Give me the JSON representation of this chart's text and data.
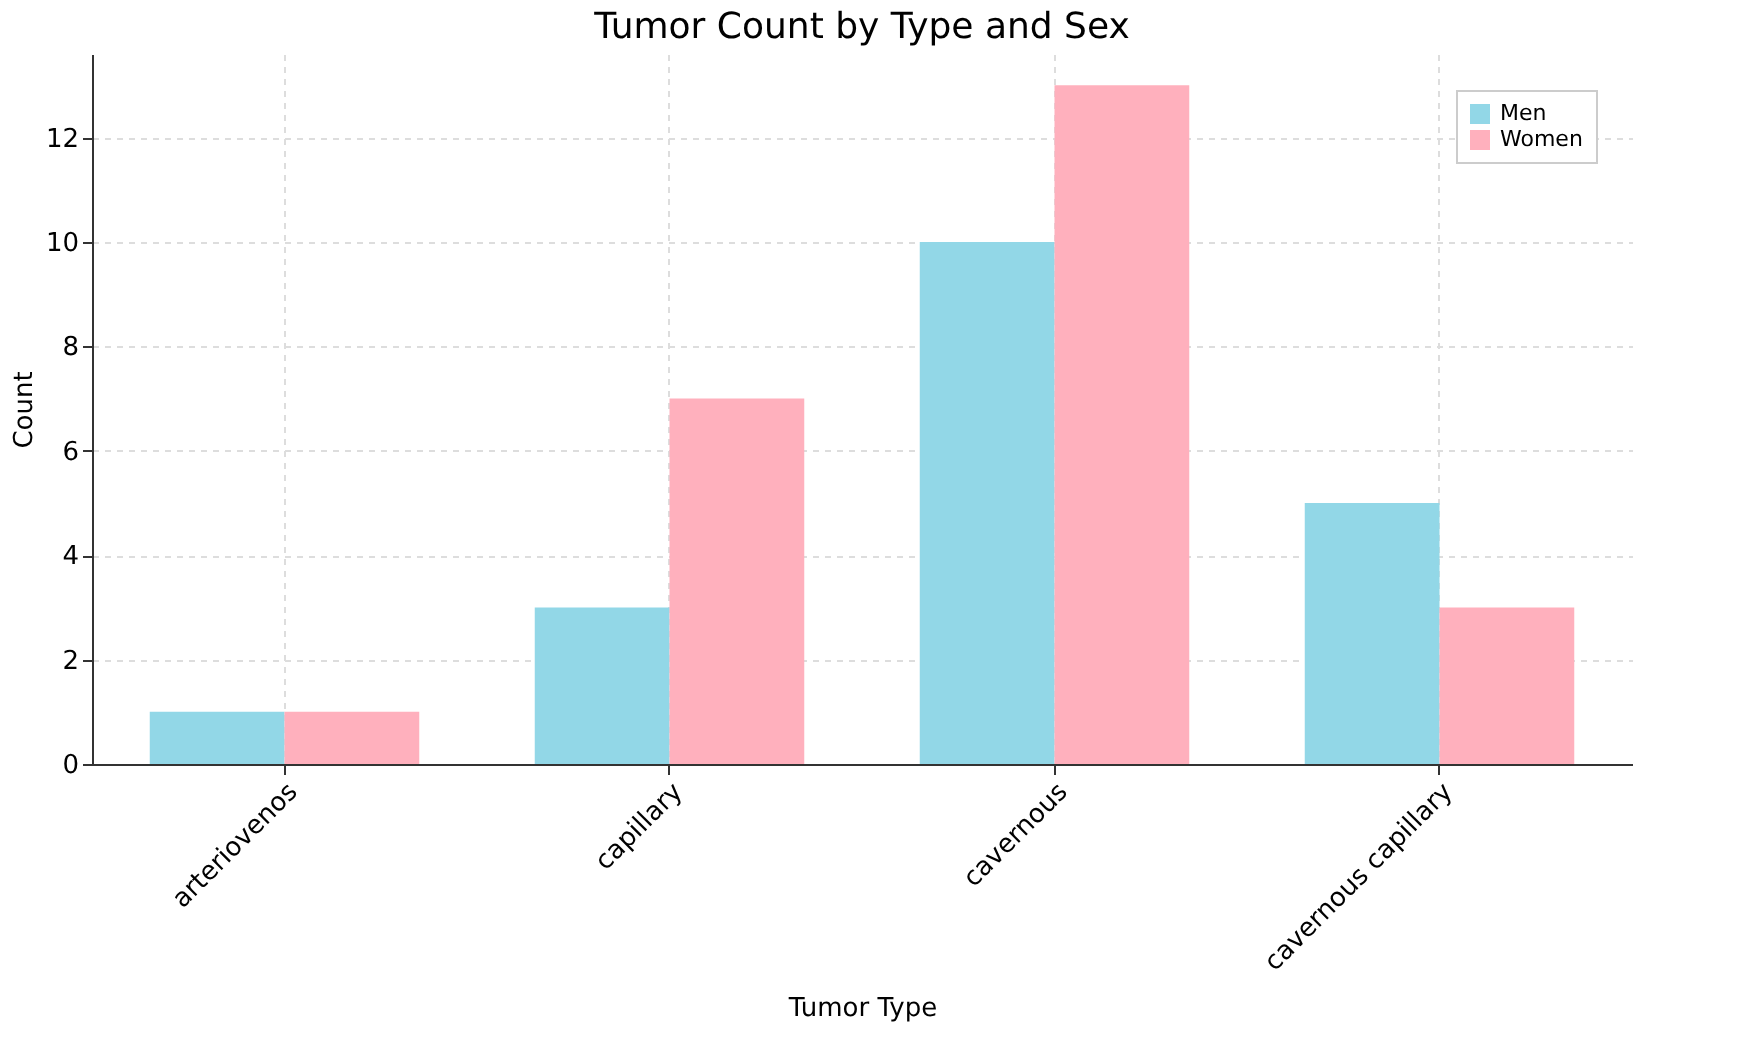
{
  "chart_data": {
    "type": "bar",
    "title": "Tumor Count by Type and Sex",
    "xlabel": "Tumor Type",
    "ylabel": "Count",
    "categories": [
      "arteriovenos",
      "capillary",
      "cavernous",
      "cavernous capillary"
    ],
    "series": [
      {
        "name": "Men",
        "color": "#92d7e7",
        "values": [
          1,
          3,
          10,
          5
        ]
      },
      {
        "name": "Women",
        "color": "#ffb0bd",
        "values": [
          1,
          7,
          13,
          3
        ]
      }
    ],
    "ylim": [
      0,
      13.6
    ],
    "yticks": [
      0,
      2,
      4,
      6,
      8,
      10,
      12
    ],
    "grid": true,
    "legend": "top right"
  }
}
